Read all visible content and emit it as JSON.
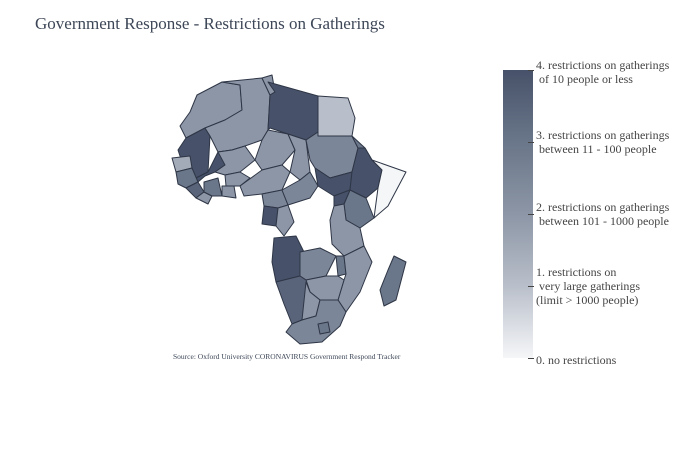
{
  "title": "Government Response - Restrictions on Gatherings",
  "source": "Source:  Oxford University CORONAVIRUS Government Respond Tracker",
  "colorbar": {
    "min": 0,
    "max": 4,
    "colors": [
      "#f5f6f8",
      "#b9bfca",
      "#8c96a6",
      "#6a7689",
      "#47526a"
    ],
    "ticks": [
      {
        "value": 4,
        "lines": [
          "4. restrictions on gatherings",
          " of 10 people or less"
        ]
      },
      {
        "value": 3,
        "lines": [
          "3. restrictions on gatherings",
          " between 11 - 100 people"
        ]
      },
      {
        "value": 2,
        "lines": [
          "2. restrictions on gatherings",
          " between 101 - 1000 people"
        ]
      },
      {
        "value": 1,
        "lines": [
          "1. restrictions on",
          " very large gatherings",
          "(limit > 1000 people)"
        ]
      },
      {
        "value": 0,
        "lines": [
          "0. no restrictions"
        ]
      }
    ]
  },
  "regions": [
    {
      "name": "Morocco",
      "value": 2
    },
    {
      "name": "Western Sahara",
      "value": 4
    },
    {
      "name": "Algeria",
      "value": 2
    },
    {
      "name": "Tunisia",
      "value": 2
    },
    {
      "name": "Libya",
      "value": 4
    },
    {
      "name": "Egypt",
      "value": 1
    },
    {
      "name": "Mauritania",
      "value": 4
    },
    {
      "name": "Mali",
      "value": 2
    },
    {
      "name": "Niger",
      "value": 2
    },
    {
      "name": "Chad",
      "value": 2
    },
    {
      "name": "Sudan",
      "value": 2.5
    },
    {
      "name": "Eritrea",
      "value": 3
    },
    {
      "name": "Senegal",
      "value": 1.5
    },
    {
      "name": "Guinea",
      "value": 3
    },
    {
      "name": "Sierra Leone",
      "value": 3.5
    },
    {
      "name": "Liberia",
      "value": 2
    },
    {
      "name": "Cote d'Ivoire",
      "value": 3
    },
    {
      "name": "Burkina Faso",
      "value": 2
    },
    {
      "name": "Ghana",
      "value": 2
    },
    {
      "name": "Nigeria",
      "value": 2
    },
    {
      "name": "Cameroon",
      "value": 2.5
    },
    {
      "name": "Central African Republic",
      "value": 2.5
    },
    {
      "name": "South Sudan",
      "value": 4
    },
    {
      "name": "Ethiopia",
      "value": 4
    },
    {
      "name": "Somalia",
      "value": 0
    },
    {
      "name": "Kenya",
      "value": 3
    },
    {
      "name": "Uganda",
      "value": 4
    },
    {
      "name": "Gabon",
      "value": 4
    },
    {
      "name": "Congo",
      "value": 2
    },
    {
      "name": "Tanzania",
      "value": 2
    },
    {
      "name": "Angola",
      "value": 4
    },
    {
      "name": "Zambia",
      "value": 2.5
    },
    {
      "name": "Malawi",
      "value": 3
    },
    {
      "name": "Mozambique",
      "value": 2
    },
    {
      "name": "Zimbabwe",
      "value": 2
    },
    {
      "name": "Namibia",
      "value": 3.5
    },
    {
      "name": "Botswana",
      "value": 2
    },
    {
      "name": "South Africa",
      "value": 2.5
    },
    {
      "name": "Lesotho",
      "value": 3
    },
    {
      "name": "Madagascar",
      "value": 3
    }
  ]
}
